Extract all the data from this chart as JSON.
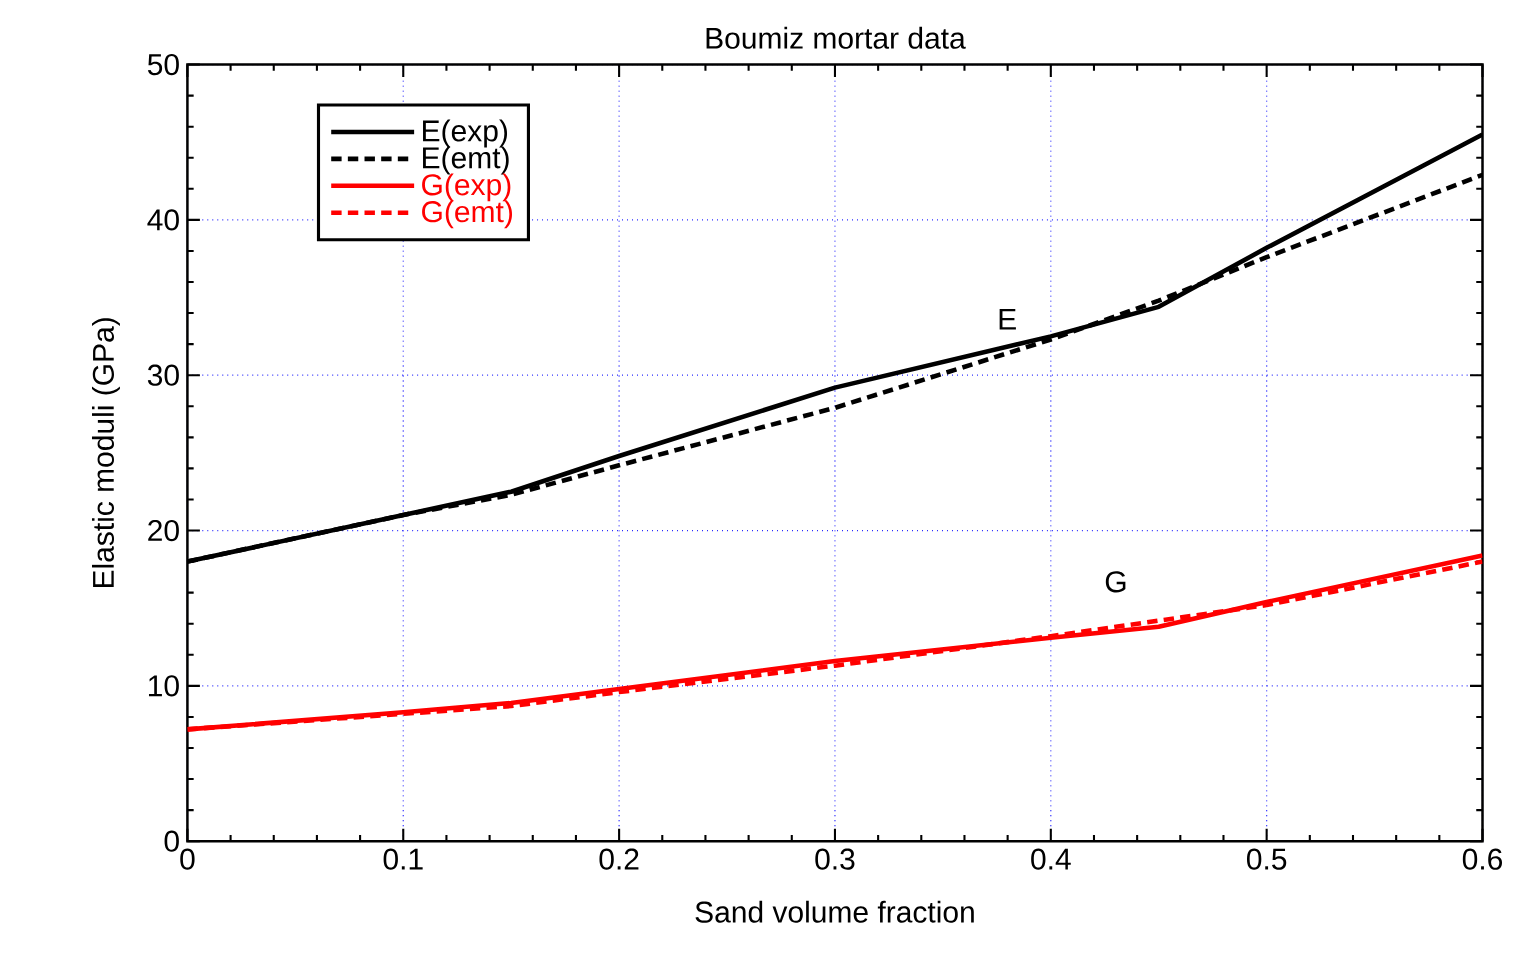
{
  "chart_data": {
    "type": "line",
    "title": "Boumiz mortar data",
    "xlabel": "Sand volume fraction",
    "ylabel": "Elastic moduli (GPa)",
    "x": [
      0,
      0.1,
      0.15,
      0.2,
      0.3,
      0.4,
      0.45,
      0.5,
      0.6
    ],
    "series": [
      {
        "name": "E(exp)",
        "color": "#000000",
        "line_style": "solid",
        "values": [
          18,
          21,
          22.5,
          24.8,
          29.2,
          32.5,
          34.4,
          38.2,
          45.5
        ]
      },
      {
        "name": "E(emt)",
        "color": "#000000",
        "line_style": "dashed",
        "values": [
          18,
          21,
          22.3,
          24.2,
          27.9,
          32.3,
          34.8,
          37.6,
          42.9
        ]
      },
      {
        "name": "G(exp)",
        "color": "#ff0000",
        "line_style": "solid",
        "values": [
          7.2,
          8.3,
          8.9,
          9.8,
          11.6,
          13.1,
          13.8,
          15.4,
          18.4
        ]
      },
      {
        "name": "G(emt)",
        "color": "#ff0000",
        "line_style": "dashed",
        "values": [
          7.2,
          8.2,
          8.7,
          9.6,
          11.3,
          13.2,
          14.2,
          15.2,
          18.0
        ]
      }
    ],
    "annotations": [
      "E",
      "G"
    ],
    "xlim": [
      0,
      0.6
    ],
    "ylim": [
      0,
      50
    ],
    "xticks": [
      0,
      0.1,
      0.2,
      0.3,
      0.4,
      0.5,
      0.6
    ],
    "yticks": [
      0,
      10,
      20,
      30,
      40,
      50
    ],
    "grid": true,
    "legend": "top left",
    "marker": "none"
  }
}
